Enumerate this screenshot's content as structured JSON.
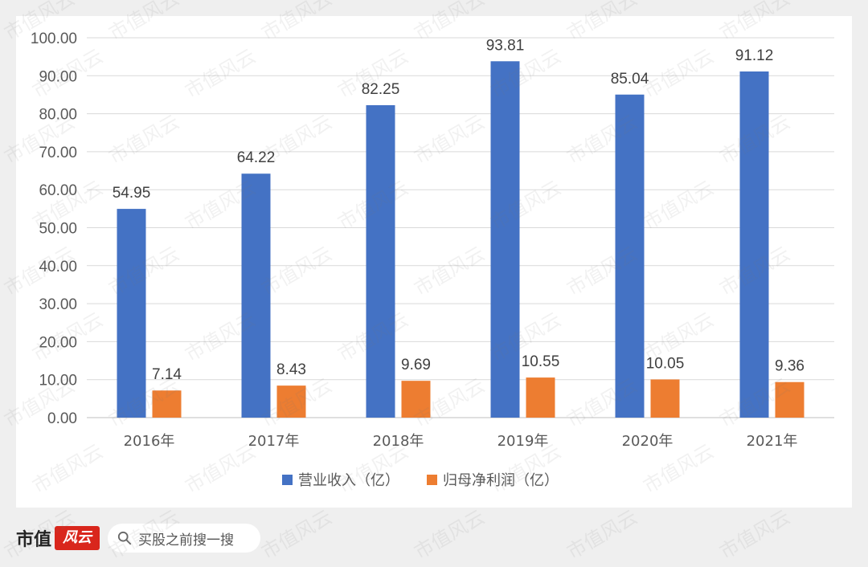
{
  "chart_data": {
    "type": "bar",
    "categories": [
      "2016年",
      "2017年",
      "2018年",
      "2019年",
      "2020年",
      "2021年"
    ],
    "series": [
      {
        "name": "营业收入（亿）",
        "color": "#4472c4",
        "values": [
          54.95,
          64.22,
          82.25,
          93.81,
          85.04,
          91.12
        ]
      },
      {
        "name": "归母净利润（亿）",
        "color": "#ed7d31",
        "values": [
          7.14,
          8.43,
          9.69,
          10.55,
          10.05,
          9.36
        ]
      }
    ],
    "series_labels": [
      [
        "54.95",
        "64.22",
        "82.25",
        "93.81",
        "85.04",
        "91.12"
      ],
      [
        "7.14",
        "8.43",
        "9.69",
        "10.55",
        "10.05",
        "9.36"
      ]
    ],
    "yticks": [
      "0.00",
      "10.00",
      "20.00",
      "30.00",
      "40.00",
      "50.00",
      "60.00",
      "70.00",
      "80.00",
      "90.00",
      "100.00"
    ],
    "ylim": [
      0,
      100
    ],
    "grid": true,
    "legend_position": "bottom"
  },
  "footer": {
    "brand_text": "市值",
    "brand_mark": "风云",
    "search_placeholder": "买股之前搜一搜",
    "search_icon": "search-icon"
  },
  "watermark": "市值风云"
}
